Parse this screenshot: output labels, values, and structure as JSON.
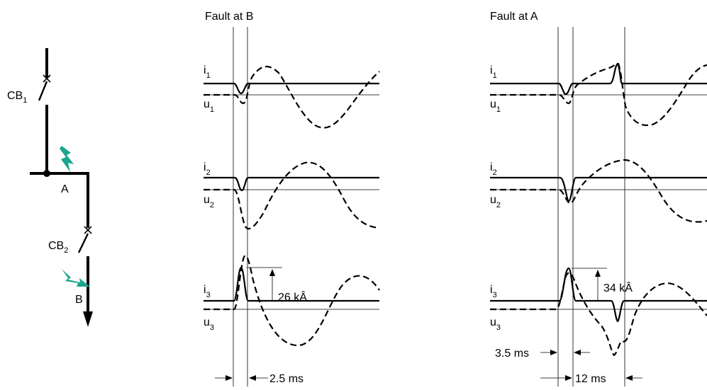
{
  "circuit": {
    "breaker_1": "CB",
    "breaker_1_sub": "1",
    "breaker_2": "CB",
    "breaker_2_sub": "2",
    "fault_point_a": "A",
    "fault_point_b": "B",
    "fault_color": "#1aa58c"
  },
  "panel_b": {
    "title": "Fault at B",
    "i1": "i",
    "i1_sub": "1",
    "u1": "u",
    "u1_sub": "1",
    "i2": "i",
    "i2_sub": "2",
    "u2": "u",
    "u2_sub": "2",
    "i3": "i",
    "i3_sub": "3",
    "u3": "u",
    "u3_sub": "3",
    "peak_current": "26 kÂ",
    "time_interval": "2.5 ms"
  },
  "panel_a": {
    "title": "Fault at A",
    "i1": "i",
    "i1_sub": "1",
    "u1": "u",
    "u1_sub": "1",
    "i2": "i",
    "i2_sub": "2",
    "u2": "u",
    "u2_sub": "2",
    "i3": "i",
    "i3_sub": "3",
    "u3": "u",
    "u3_sub": "3",
    "peak_current": "34 kÂ",
    "time_interval_1": "3.5 ms",
    "time_interval_2": "12 ms"
  }
}
